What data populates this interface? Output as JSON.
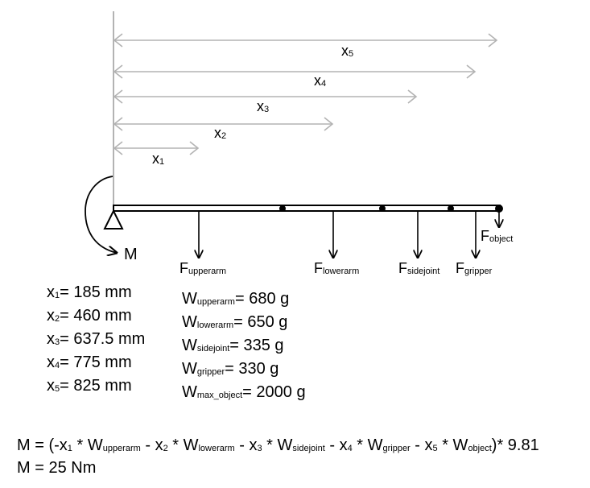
{
  "dimensions": {
    "x5": {
      "var": "x",
      "sub": "5"
    },
    "x4": {
      "var": "x",
      "sub": "4"
    },
    "x3": {
      "var": "x",
      "sub": "3"
    },
    "x2": {
      "var": "x",
      "sub": "2"
    },
    "x1": {
      "var": "x",
      "sub": "1"
    }
  },
  "moment_label": "M",
  "forces": {
    "upperarm": {
      "var": "F",
      "sub": "upperarm"
    },
    "lowerarm": {
      "var": "F",
      "sub": "lowerarm"
    },
    "sidejoint": {
      "var": "F",
      "sub": "sidejoint"
    },
    "gripper": {
      "var": "F",
      "sub": "gripper"
    },
    "object": {
      "var": "F",
      "sub": "object"
    }
  },
  "distances": [
    {
      "var": "x",
      "sub": "1",
      "value": "= 185 mm"
    },
    {
      "var": "x",
      "sub": "2",
      "value": "= 460 mm"
    },
    {
      "var": "x",
      "sub": "3",
      "value": "= 637.5 mm"
    },
    {
      "var": "x",
      "sub": "4",
      "value": "= 775 mm"
    },
    {
      "var": "x",
      "sub": "5",
      "value": "= 825 mm"
    }
  ],
  "weights": [
    {
      "var": "W",
      "sub": "upperarm",
      "value": "= 680 g"
    },
    {
      "var": "W",
      "sub": "lowerarm",
      "value": "= 650 g"
    },
    {
      "var": "W",
      "sub": "sidejoint",
      "value": "= 335 g"
    },
    {
      "var": "W",
      "sub": "gripper",
      "value": "= 330 g"
    },
    {
      "var": "W",
      "sub": "max_object",
      "value": "= 2000 g"
    }
  ],
  "equation": {
    "lhs": "M = (-",
    "t1": {
      "x": "x",
      "xs": "1",
      "op": " * ",
      "w": "W",
      "ws": "upperarm"
    },
    "sep1": " - ",
    "t2": {
      "x": "x",
      "xs": "2",
      "op": " * ",
      "w": "W",
      "ws": "lowerarm"
    },
    "sep2": " - ",
    "t3": {
      "x": "x",
      "xs": "3",
      "op": " * ",
      "w": "W",
      "ws": "sidejoint"
    },
    "sep3": " - ",
    "t4": {
      "x": "x",
      "xs": "4",
      "op": " * ",
      "w": "W",
      "ws": "gripper"
    },
    "sep4": " - ",
    "t5": {
      "x": "x",
      "xs": "5",
      "op": " * ",
      "w": "W",
      "ws": "object"
    },
    "tail": ")* 9.81"
  },
  "result": "M = 25 Nm",
  "colors": {
    "dimension": "#b3b3b3",
    "ink": "#000000"
  }
}
